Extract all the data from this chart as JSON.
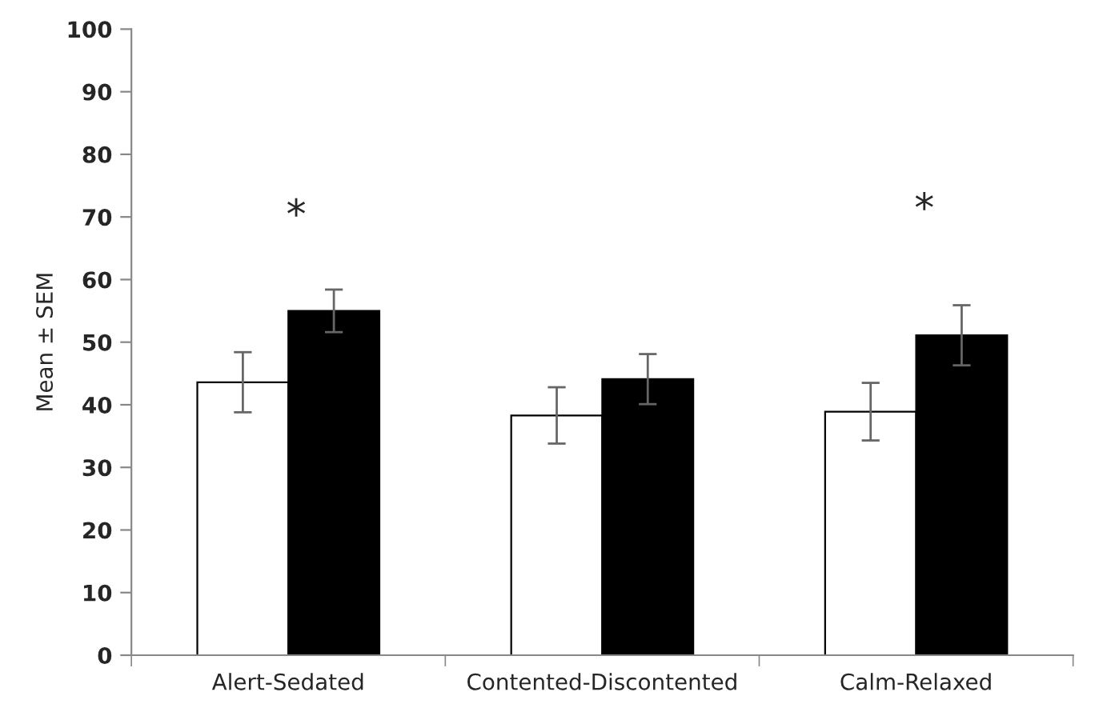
{
  "chart_data": {
    "type": "bar",
    "ylabel": "Mean ± SEM",
    "categories": [
      "Alert-Sedated",
      "Contented-Discontented",
      "Calm-Relaxed"
    ],
    "series": [
      {
        "color": "#ffffff",
        "values": [
          43.6,
          38.3,
          38.9
        ],
        "errors": [
          4.8,
          4.5,
          4.6
        ]
      },
      {
        "color": "#000000",
        "values": [
          55.0,
          44.1,
          51.1
        ],
        "errors": [
          3.4,
          4.0,
          4.8
        ]
      }
    ],
    "ylim": [
      0,
      100
    ],
    "yticks": [
      0,
      10,
      20,
      30,
      40,
      50,
      60,
      70,
      80,
      90,
      100
    ],
    "grid": false,
    "legend": false,
    "annotations": [
      "*",
      "*"
    ]
  }
}
